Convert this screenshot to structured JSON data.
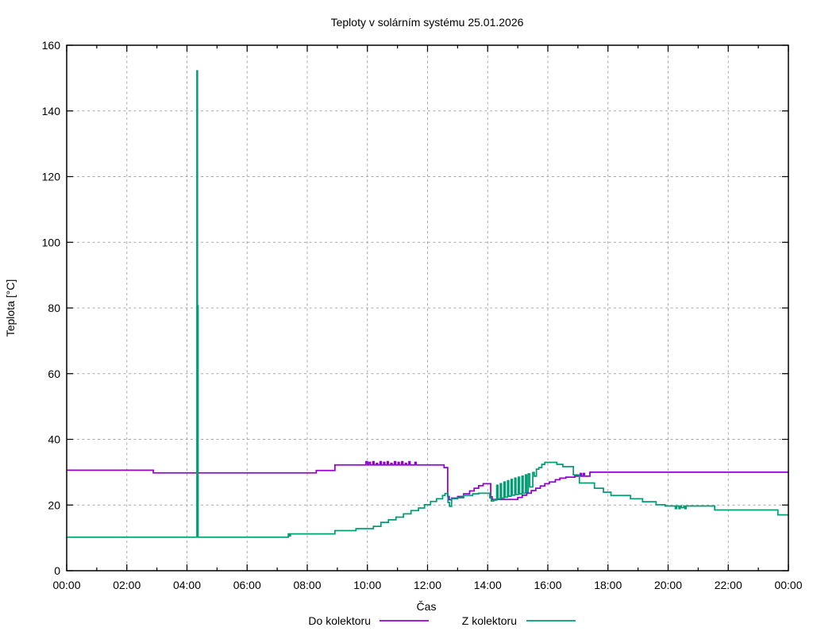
{
  "figure": {
    "background": "#ffffff",
    "axis_color": "#000000",
    "grid_color": "#a8a8a8"
  },
  "chart_data": {
    "type": "line",
    "title": "Teploty v solárním systému 25.01.2026",
    "xlabel": "Čas",
    "ylabel": "Teplota [°C]",
    "xlim_hours": [
      0,
      24
    ],
    "ylim": [
      0,
      160
    ],
    "yticks": [
      0,
      20,
      40,
      60,
      80,
      100,
      120,
      140,
      160
    ],
    "xtick_labels": [
      "00:00",
      "02:00",
      "04:00",
      "06:00",
      "08:00",
      "10:00",
      "12:00",
      "14:00",
      "16:00",
      "18:00",
      "20:00",
      "22:00",
      "00:00"
    ],
    "xtick_major_every_hours": 2,
    "xtick_minor_every_hours": 1,
    "grid": true,
    "grid_style": "dashed",
    "legend_position": "bottom-center",
    "series": [
      {
        "name": "Do kolektoru",
        "color": "#9400d3",
        "style": "steps-after",
        "points": [
          [
            0,
            30.6
          ],
          [
            2.88,
            29.8
          ],
          [
            8.3,
            30.5
          ],
          [
            8.92,
            32.2
          ],
          [
            9.95,
            33.2
          ],
          [
            10.0,
            32.2
          ],
          [
            10.05,
            33.0
          ],
          [
            10.1,
            32.2
          ],
          [
            10.18,
            33.2
          ],
          [
            10.22,
            32.2
          ],
          [
            10.3,
            32.7
          ],
          [
            10.34,
            32.2
          ],
          [
            10.42,
            33.2
          ],
          [
            10.46,
            32.2
          ],
          [
            10.54,
            33.0
          ],
          [
            10.58,
            32.2
          ],
          [
            10.66,
            33.2
          ],
          [
            10.7,
            32.2
          ],
          [
            10.78,
            32.7
          ],
          [
            10.82,
            32.2
          ],
          [
            10.9,
            33.2
          ],
          [
            10.94,
            32.2
          ],
          [
            11.02,
            33.0
          ],
          [
            11.06,
            32.2
          ],
          [
            11.14,
            33.2
          ],
          [
            11.18,
            32.2
          ],
          [
            11.26,
            32.7
          ],
          [
            11.3,
            32.2
          ],
          [
            11.38,
            33.2
          ],
          [
            11.42,
            32.2
          ],
          [
            11.58,
            33.0
          ],
          [
            11.62,
            32.2
          ],
          [
            12.5,
            32.2
          ],
          [
            12.55,
            31.4
          ],
          [
            12.65,
            31.4
          ],
          [
            12.67,
            22.6
          ],
          [
            12.72,
            21.6
          ],
          [
            12.8,
            22.1
          ],
          [
            13.0,
            22.6
          ],
          [
            13.2,
            23.4
          ],
          [
            13.4,
            24.3
          ],
          [
            13.55,
            25.1
          ],
          [
            13.7,
            25.9
          ],
          [
            13.85,
            26.5
          ],
          [
            14.05,
            26.5
          ],
          [
            14.1,
            22.5
          ],
          [
            14.15,
            21.7
          ],
          [
            14.9,
            21.7
          ],
          [
            15.0,
            22.3
          ],
          [
            15.15,
            23.0
          ],
          [
            15.3,
            23.6
          ],
          [
            15.45,
            24.4
          ],
          [
            15.6,
            25.1
          ],
          [
            15.75,
            25.8
          ],
          [
            15.9,
            26.5
          ],
          [
            16.05,
            27.0
          ],
          [
            16.25,
            27.7
          ],
          [
            16.4,
            28.2
          ],
          [
            16.6,
            28.5
          ],
          [
            16.9,
            28.8
          ],
          [
            17.08,
            29.6
          ],
          [
            17.12,
            28.8
          ],
          [
            17.18,
            29.6
          ],
          [
            17.22,
            28.8
          ],
          [
            17.4,
            30.0
          ],
          [
            24,
            30.0
          ]
        ]
      },
      {
        "name": "Z kolektoru",
        "color": "#009e73",
        "style": "steps-after",
        "points": [
          [
            0,
            10.2
          ],
          [
            4.31,
            10.2
          ],
          [
            4.33,
            152.2
          ],
          [
            4.35,
            80.7
          ],
          [
            4.37,
            10.2
          ],
          [
            7.35,
            10.2
          ],
          [
            7.37,
            11.2
          ],
          [
            7.4,
            10.6
          ],
          [
            7.44,
            11.2
          ],
          [
            8.92,
            12.2
          ],
          [
            9.62,
            12.8
          ],
          [
            10.2,
            13.5
          ],
          [
            10.45,
            14.7
          ],
          [
            10.7,
            15.5
          ],
          [
            10.95,
            16.3
          ],
          [
            11.2,
            17.3
          ],
          [
            11.45,
            18.3
          ],
          [
            11.7,
            19.1
          ],
          [
            11.9,
            20.1
          ],
          [
            12.1,
            21.1
          ],
          [
            12.3,
            21.9
          ],
          [
            12.5,
            22.9
          ],
          [
            12.58,
            23.5
          ],
          [
            12.68,
            20.8
          ],
          [
            12.73,
            19.6
          ],
          [
            12.8,
            21.9
          ],
          [
            13.0,
            22.2
          ],
          [
            13.2,
            22.9
          ],
          [
            13.5,
            23.4
          ],
          [
            13.7,
            23.6
          ],
          [
            14.02,
            23.6
          ],
          [
            14.07,
            22.2
          ],
          [
            14.12,
            21.2
          ],
          [
            14.2,
            21.5
          ],
          [
            14.3,
            26.0
          ],
          [
            14.34,
            21.9
          ],
          [
            14.42,
            26.5
          ],
          [
            14.46,
            22.1
          ],
          [
            14.54,
            27.0
          ],
          [
            14.58,
            22.4
          ],
          [
            14.66,
            27.4
          ],
          [
            14.7,
            22.7
          ],
          [
            14.78,
            27.8
          ],
          [
            14.82,
            23.0
          ],
          [
            14.9,
            28.2
          ],
          [
            14.94,
            23.2
          ],
          [
            15.02,
            28.5
          ],
          [
            15.06,
            23.4
          ],
          [
            15.14,
            28.8
          ],
          [
            15.18,
            23.6
          ],
          [
            15.26,
            29.2
          ],
          [
            15.3,
            24.0
          ],
          [
            15.35,
            29.5
          ],
          [
            15.4,
            25.5
          ],
          [
            15.5,
            29.9
          ],
          [
            15.55,
            28.8
          ],
          [
            15.62,
            30.9
          ],
          [
            15.7,
            31.4
          ],
          [
            15.8,
            32.4
          ],
          [
            15.9,
            33.0
          ],
          [
            16.2,
            33.0
          ],
          [
            16.3,
            32.4
          ],
          [
            16.5,
            31.7
          ],
          [
            16.85,
            29.2
          ],
          [
            17.05,
            26.7
          ],
          [
            17.55,
            25.1
          ],
          [
            17.85,
            23.9
          ],
          [
            18.1,
            22.9
          ],
          [
            18.75,
            21.9
          ],
          [
            19.15,
            21.0
          ],
          [
            19.6,
            20.1
          ],
          [
            19.9,
            19.7
          ],
          [
            20.2,
            19.7
          ],
          [
            20.24,
            18.9
          ],
          [
            20.28,
            19.7
          ],
          [
            20.36,
            18.9
          ],
          [
            20.4,
            19.7
          ],
          [
            20.44,
            19.2
          ],
          [
            20.52,
            19.7
          ],
          [
            20.56,
            18.9
          ],
          [
            20.6,
            19.7
          ],
          [
            21.5,
            19.7
          ],
          [
            21.55,
            18.5
          ],
          [
            23.6,
            18.5
          ],
          [
            23.65,
            17.0
          ],
          [
            24,
            17.0
          ]
        ]
      }
    ]
  }
}
